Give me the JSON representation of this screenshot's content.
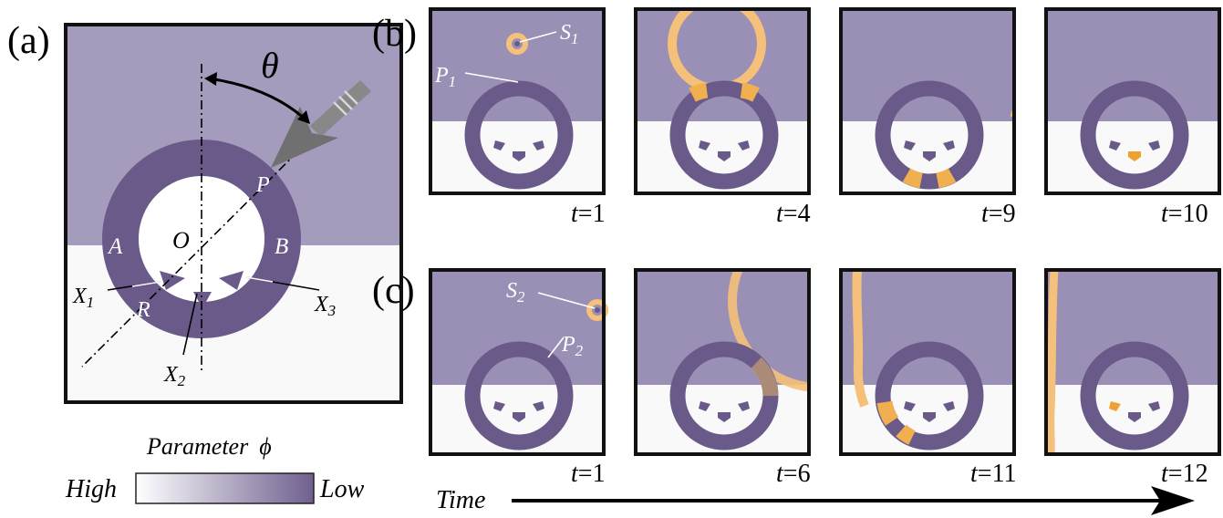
{
  "panel_a": {
    "letter": "(a)",
    "angle_label": "θ",
    "point_P": "P",
    "point_O": "O",
    "region_A": "A",
    "region_B": "B",
    "radius_R": "R",
    "x1": "X",
    "x1_sub": "1",
    "x2": "X",
    "x2_sub": "2",
    "x3": "X",
    "x3_sub": "3"
  },
  "legend": {
    "title": "Parameter",
    "symbol": "ϕ",
    "high": "High",
    "low": "Low",
    "colors": {
      "high": "#ffffff",
      "low": "#6f5f8e"
    }
  },
  "panel_b": {
    "letter": "(b)",
    "source_label": "S",
    "source_sub": "1",
    "path_label": "P",
    "path_sub": "1",
    "frames": [
      {
        "t_var": "t",
        "t_val": "=1"
      },
      {
        "t_var": "t",
        "t_val": "=4"
      },
      {
        "t_var": "t",
        "t_val": "=9"
      },
      {
        "t_var": "t",
        "t_val": "=10"
      }
    ]
  },
  "panel_c": {
    "letter": "(c)",
    "source_label": "S",
    "source_sub": "2",
    "path_label": "P",
    "path_sub": "2",
    "frames": [
      {
        "t_var": "t",
        "t_val": "=1"
      },
      {
        "t_var": "t",
        "t_val": "=6"
      },
      {
        "t_var": "t",
        "t_val": "=11"
      },
      {
        "t_var": "t",
        "t_val": "=12"
      }
    ]
  },
  "time_axis": {
    "label": "Time"
  },
  "colors": {
    "top_region": "#a59bbd",
    "frame_region": "#9a8fb4",
    "bottom_region": "#f9f9f9",
    "ring": "#6a5a8a",
    "wave": "#f5c07a",
    "spot": "#f0a030",
    "arrow": "#666666"
  }
}
